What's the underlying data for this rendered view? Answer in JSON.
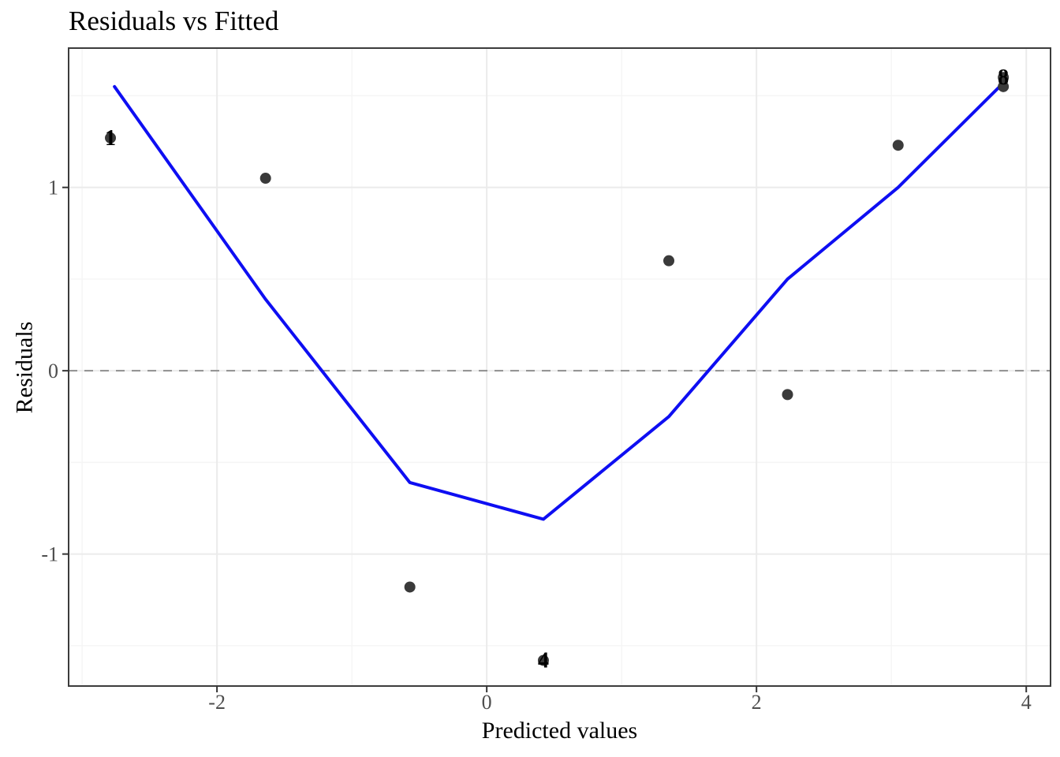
{
  "chart_data": {
    "type": "scatter",
    "title": "Residuals vs Fitted",
    "xlabel": "Predicted values",
    "ylabel": "Residuals",
    "xlim": [
      -3.1,
      4.18
    ],
    "ylim": [
      -1.72,
      1.76
    ],
    "grid": "on",
    "legend": "none",
    "x_ticks": {
      "values": [
        -2,
        0,
        2,
        4
      ],
      "labels": [
        "-2",
        "0",
        "2",
        "4"
      ]
    },
    "y_ticks": {
      "values": [
        1,
        0,
        -1
      ],
      "labels": [
        "1",
        "0",
        "-1"
      ]
    },
    "x_minor_ticks": [
      -3,
      -1,
      1,
      3
    ],
    "y_minor_ticks": [
      -1.5,
      -0.5,
      0.5,
      1.5
    ],
    "reference_line": {
      "y": 0,
      "style": "dashed"
    },
    "points": [
      {
        "x": -2.79,
        "y": 1.27,
        "label": "1"
      },
      {
        "x": -1.64,
        "y": 1.05,
        "label": ""
      },
      {
        "x": -0.57,
        "y": -1.18,
        "label": ""
      },
      {
        "x": 0.42,
        "y": -1.58,
        "label": "4"
      },
      {
        "x": 1.35,
        "y": 0.6,
        "label": ""
      },
      {
        "x": 2.23,
        "y": -0.13,
        "label": ""
      },
      {
        "x": 3.05,
        "y": 1.23,
        "label": ""
      },
      {
        "x": 3.83,
        "y": 1.6,
        "label": "8"
      },
      {
        "x": 3.83,
        "y": 1.55,
        "label": ""
      }
    ],
    "smooth_line": {
      "name": "loess-smoother",
      "x": [
        -2.76,
        -1.64,
        -0.57,
        0.42,
        1.35,
        2.23,
        3.05,
        3.83
      ],
      "y": [
        1.55,
        0.39,
        -0.61,
        -0.81,
        -0.25,
        0.5,
        1.0,
        1.57
      ]
    },
    "colors": {
      "point": "#3a3a3a",
      "smooth": "#0e0ef2",
      "reference": "#8f8f8f",
      "grid_major": "#ebebeb",
      "grid_minor": "#f5f5f5",
      "panel_border": "#3c3c3c",
      "tick_mark": "#343434",
      "tick_label": "#4e4e4e",
      "text": "#000000",
      "background": "#ffffff"
    }
  }
}
